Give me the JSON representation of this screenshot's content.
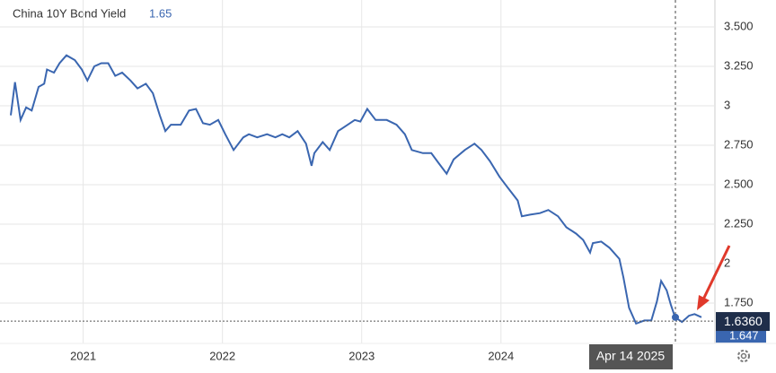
{
  "chart_data": {
    "type": "line",
    "latest": "1.65",
    "crosshair_label": "Apr 14 2025",
    "last_value": {
      "value": 1.636,
      "label": "1.6360"
    },
    "prev_value": {
      "value": 1.647,
      "label": "1.647"
    },
    "x": [
      2020.48,
      2020.51,
      2020.55,
      2020.59,
      2020.63,
      2020.68,
      2020.72,
      2020.74,
      2020.79,
      2020.83,
      2020.88,
      2020.94,
      2020.99,
      2021.03,
      2021.08,
      2021.13,
      2021.18,
      2021.23,
      2021.28,
      2021.34,
      2021.39,
      2021.45,
      2021.5,
      2021.55,
      2021.59,
      2021.63,
      2021.7,
      2021.76,
      2021.81,
      2021.86,
      2021.91,
      2021.97,
      2022.02,
      2022.08,
      2022.15,
      2022.19,
      2022.25,
      2022.32,
      2022.38,
      2022.43,
      2022.48,
      2022.54,
      2022.6,
      2022.64,
      2022.66,
      2022.72,
      2022.77,
      2022.83,
      2022.9,
      2022.95,
      2022.99,
      2023.04,
      2023.1,
      2023.18,
      2023.25,
      2023.31,
      2023.36,
      2023.44,
      2023.5,
      2023.55,
      2023.61,
      2023.66,
      2023.74,
      2023.81,
      2023.86,
      2023.92,
      2023.99,
      2024.05,
      2024.12,
      2024.15,
      2024.21,
      2024.28,
      2024.34,
      2024.41,
      2024.47,
      2024.54,
      2024.59,
      2024.64,
      2024.66,
      2024.72,
      2024.78,
      2024.85,
      2024.88,
      2024.92,
      2024.97,
      2025.03,
      2025.08,
      2025.12,
      2025.15,
      2025.19,
      2025.22,
      2025.25,
      2025.3,
      2025.35,
      2025.39,
      2025.44
    ],
    "series": [
      {
        "name": "China 10Y Bond Yield",
        "color": "#3a66b0",
        "values": [
          2.94,
          3.15,
          2.91,
          2.99,
          2.97,
          3.12,
          3.14,
          3.23,
          3.21,
          3.27,
          3.32,
          3.29,
          3.23,
          3.16,
          3.25,
          3.27,
          3.27,
          3.19,
          3.21,
          3.16,
          3.11,
          3.14,
          3.08,
          2.94,
          2.84,
          2.88,
          2.88,
          2.97,
          2.98,
          2.89,
          2.88,
          2.91,
          2.82,
          2.72,
          2.8,
          2.82,
          2.8,
          2.82,
          2.8,
          2.82,
          2.8,
          2.84,
          2.76,
          2.62,
          2.7,
          2.77,
          2.72,
          2.84,
          2.88,
          2.91,
          2.9,
          2.98,
          2.91,
          2.91,
          2.88,
          2.82,
          2.72,
          2.7,
          2.7,
          2.64,
          2.57,
          2.66,
          2.72,
          2.76,
          2.72,
          2.65,
          2.55,
          2.48,
          2.4,
          2.3,
          2.31,
          2.32,
          2.34,
          2.3,
          2.23,
          2.19,
          2.15,
          2.07,
          2.13,
          2.14,
          2.1,
          2.03,
          1.91,
          1.72,
          1.62,
          1.64,
          1.64,
          1.76,
          1.89,
          1.83,
          1.74,
          1.66,
          1.63,
          1.67,
          1.68,
          1.66
        ]
      }
    ],
    "xlim": [
      2020.48,
      2025.53
    ],
    "xticks": [
      2021,
      2022,
      2023,
      2024
    ],
    "ylim": [
      1.5,
      3.65
    ],
    "yticks": [
      {
        "value": 3.5,
        "label": "3.500"
      },
      {
        "value": 3.25,
        "label": "3.250"
      },
      3,
      {
        "value": 2.75,
        "label": "2.750"
      },
      {
        "value": 2.5,
        "label": "2.500"
      },
      {
        "value": 2.25,
        "label": "2.250"
      },
      2,
      {
        "value": 1.75,
        "label": "1.750"
      }
    ],
    "grid": true
  }
}
